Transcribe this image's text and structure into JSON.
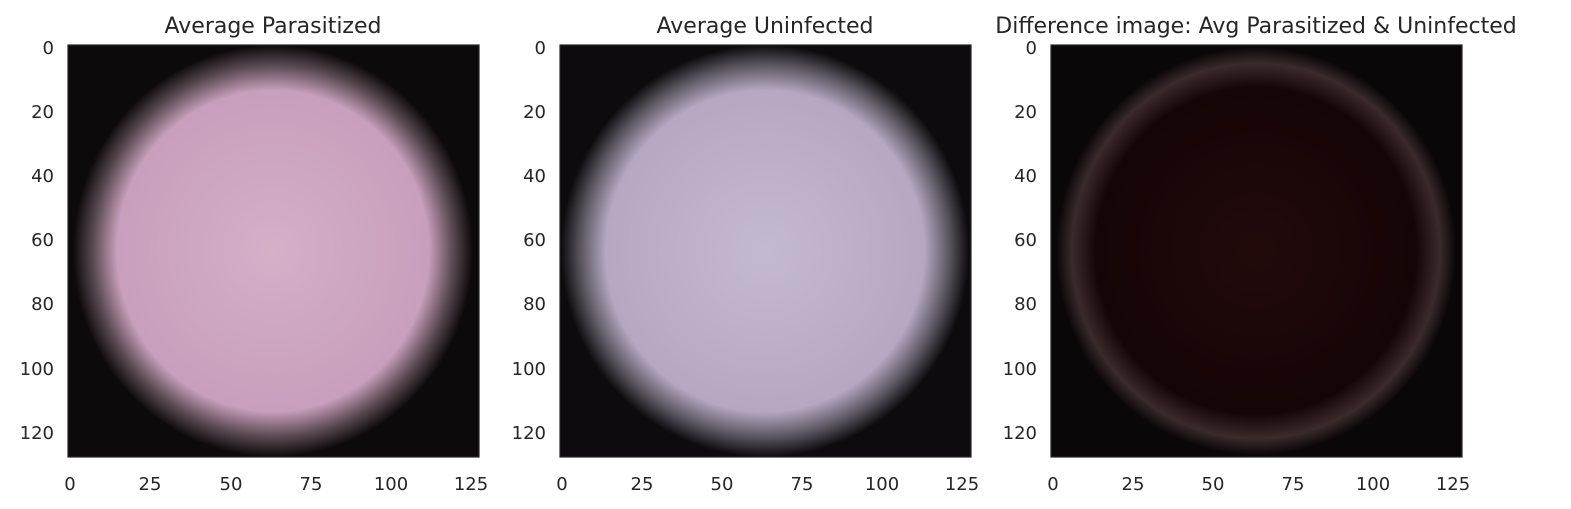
{
  "panels": [
    {
      "id": "avg-parasitized",
      "title": "Average Parasitized",
      "x_ticks": [
        "0",
        "25",
        "50",
        "75",
        "100",
        "125"
      ],
      "y_ticks": [
        "0",
        "20",
        "40",
        "60",
        "80",
        "100",
        "120"
      ],
      "x_tick_values": [
        0,
        25,
        50,
        75,
        100,
        125
      ],
      "y_tick_values": [
        0,
        20,
        40,
        60,
        80,
        100,
        120
      ],
      "extent": [
        0,
        128
      ],
      "colors": {
        "cell": "#c89fbc",
        "cell_highlight": "#d4b0c9",
        "edge": "#5a4a52",
        "background": "#0d0a0b"
      }
    },
    {
      "id": "avg-uninfected",
      "title": "Average Uninfected",
      "x_ticks": [
        "0",
        "25",
        "50",
        "75",
        "100",
        "125"
      ],
      "y_ticks": [
        "0",
        "20",
        "40",
        "60",
        "80",
        "100",
        "120"
      ],
      "x_tick_values": [
        0,
        25,
        50,
        75,
        100,
        125
      ],
      "y_tick_values": [
        0,
        20,
        40,
        60,
        80,
        100,
        120
      ],
      "extent": [
        0,
        128
      ],
      "colors": {
        "cell": "#b5a9c2",
        "cell_highlight": "#c4bacf",
        "edge": "#5e5863",
        "background": "#0d0b0d"
      }
    },
    {
      "id": "difference-image",
      "title": "Difference image: Avg Parasitized & Uninfected",
      "x_ticks": [
        "0",
        "25",
        "50",
        "75",
        "100",
        "125"
      ],
      "y_ticks": [
        "0",
        "20",
        "40",
        "60",
        "80",
        "100",
        "120"
      ],
      "x_tick_values": [
        0,
        25,
        50,
        75,
        100,
        125
      ],
      "y_tick_values": [
        0,
        20,
        40,
        60,
        80,
        100,
        120
      ],
      "extent": [
        0,
        128
      ],
      "colors": {
        "cell": "#150506",
        "cell_highlight": "#220a0b",
        "edge": "#3a2a2c",
        "background": "#0a0708"
      }
    }
  ]
}
